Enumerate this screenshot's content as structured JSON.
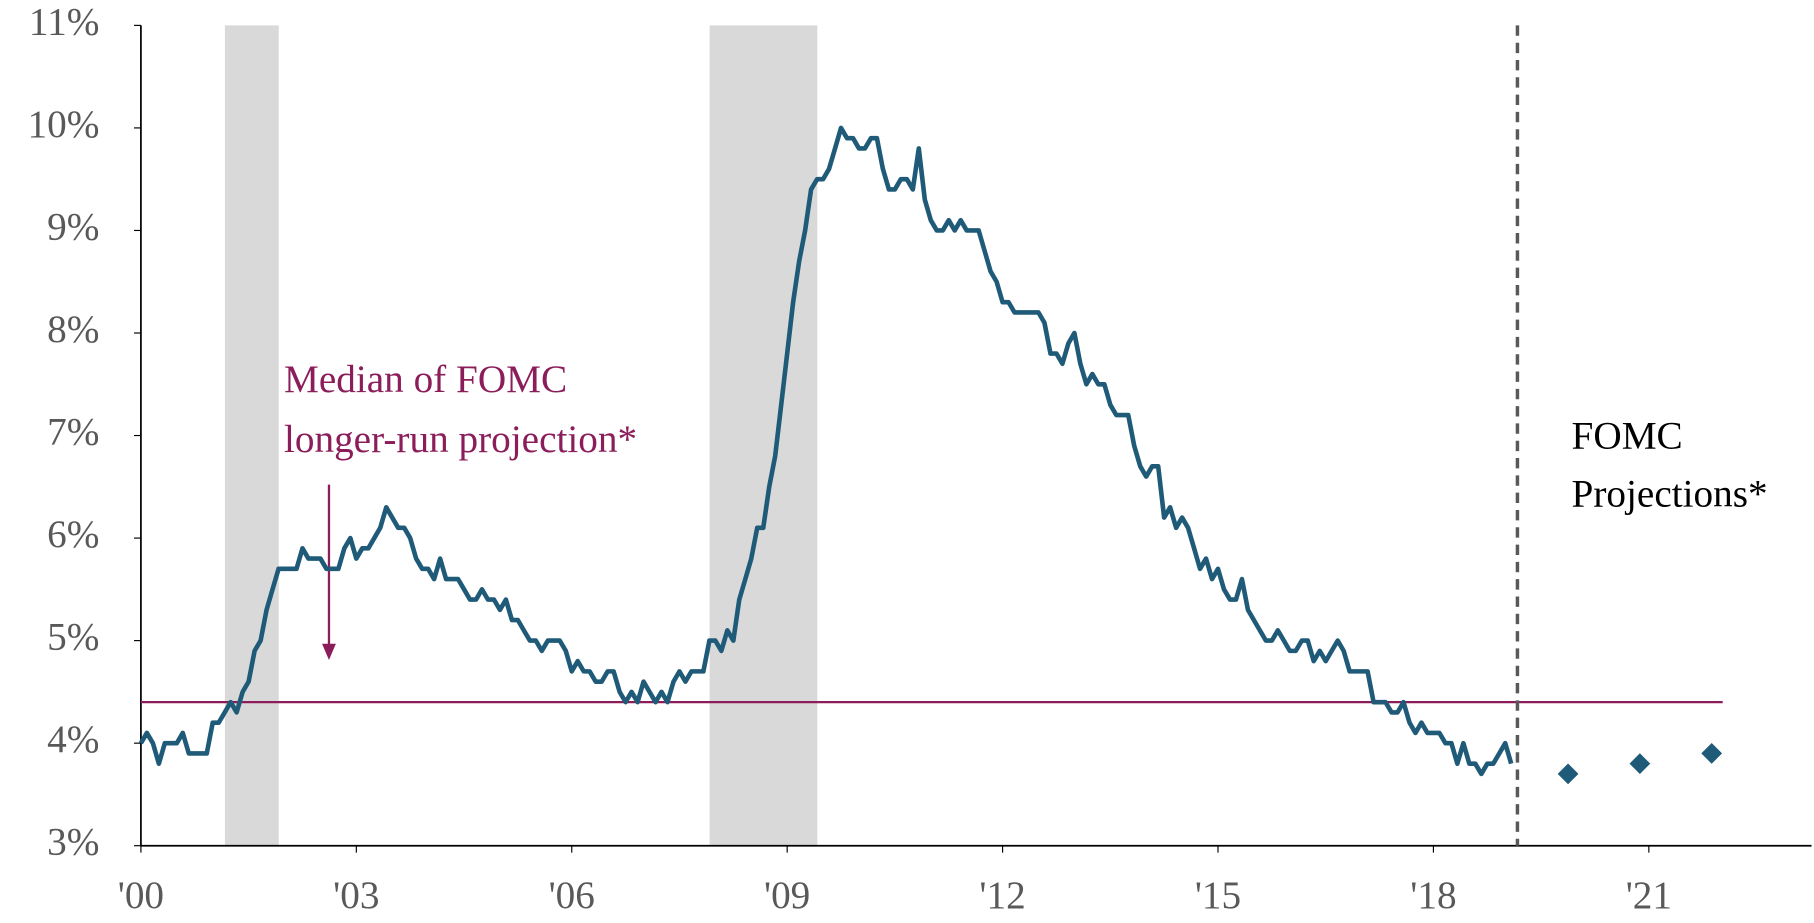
{
  "chart_data": {
    "type": "line",
    "series": [
      {
        "color": "#1f5b78",
        "x": [
          2000,
          2000.083,
          2000.167,
          2000.25,
          2000.333,
          2000.417,
          2000.5,
          2000.583,
          2000.667,
          2000.75,
          2000.833,
          2000.917,
          2001,
          2001.083,
          2001.167,
          2001.25,
          2001.333,
          2001.417,
          2001.5,
          2001.583,
          2001.667,
          2001.75,
          2001.833,
          2001.917,
          2002,
          2002.083,
          2002.167,
          2002.25,
          2002.333,
          2002.417,
          2002.5,
          2002.583,
          2002.667,
          2002.75,
          2002.833,
          2002.917,
          2003,
          2003.083,
          2003.167,
          2003.25,
          2003.333,
          2003.417,
          2003.5,
          2003.583,
          2003.667,
          2003.75,
          2003.833,
          2003.917,
          2004,
          2004.083,
          2004.167,
          2004.25,
          2004.333,
          2004.417,
          2004.5,
          2004.583,
          2004.667,
          2004.75,
          2004.833,
          2004.917,
          2005,
          2005.083,
          2005.167,
          2005.25,
          2005.333,
          2005.417,
          2005.5,
          2005.583,
          2005.667,
          2005.75,
          2005.833,
          2005.917,
          2006,
          2006.083,
          2006.167,
          2006.25,
          2006.333,
          2006.417,
          2006.5,
          2006.583,
          2006.667,
          2006.75,
          2006.833,
          2006.917,
          2007,
          2007.083,
          2007.167,
          2007.25,
          2007.333,
          2007.417,
          2007.5,
          2007.583,
          2007.667,
          2007.75,
          2007.833,
          2007.917,
          2008,
          2008.083,
          2008.167,
          2008.25,
          2008.333,
          2008.417,
          2008.5,
          2008.583,
          2008.667,
          2008.75,
          2008.833,
          2008.917,
          2009,
          2009.083,
          2009.167,
          2009.25,
          2009.333,
          2009.417,
          2009.5,
          2009.583,
          2009.667,
          2009.75,
          2009.833,
          2009.917,
          2010,
          2010.083,
          2010.167,
          2010.25,
          2010.333,
          2010.417,
          2010.5,
          2010.583,
          2010.667,
          2010.75,
          2010.833,
          2010.917,
          2011,
          2011.083,
          2011.167,
          2011.25,
          2011.333,
          2011.417,
          2011.5,
          2011.583,
          2011.667,
          2011.75,
          2011.833,
          2011.917,
          2012,
          2012.083,
          2012.167,
          2012.25,
          2012.333,
          2012.417,
          2012.5,
          2012.583,
          2012.667,
          2012.75,
          2012.833,
          2012.917,
          2013,
          2013.083,
          2013.167,
          2013.25,
          2013.333,
          2013.417,
          2013.5,
          2013.583,
          2013.667,
          2013.75,
          2013.833,
          2013.917,
          2014,
          2014.083,
          2014.167,
          2014.25,
          2014.333,
          2014.417,
          2014.5,
          2014.583,
          2014.667,
          2014.75,
          2014.833,
          2014.917,
          2015,
          2015.083,
          2015.167,
          2015.25,
          2015.333,
          2015.417,
          2015.5,
          2015.583,
          2015.667,
          2015.75,
          2015.833,
          2015.917,
          2016,
          2016.083,
          2016.167,
          2016.25,
          2016.333,
          2016.417,
          2016.5,
          2016.583,
          2016.667,
          2016.75,
          2016.833,
          2016.917,
          2017,
          2017.083,
          2017.167,
          2017.25,
          2017.333,
          2017.417,
          2017.5,
          2017.583,
          2017.667,
          2017.75,
          2017.833,
          2017.917,
          2018,
          2018.083,
          2018.167,
          2018.25,
          2018.333,
          2018.417,
          2018.5,
          2018.583,
          2018.667,
          2018.75,
          2018.833,
          2018.917,
          2019,
          2019.083
        ],
        "values": [
          4.0,
          4.1,
          4.0,
          3.8,
          4.0,
          4.0,
          4.0,
          4.1,
          3.9,
          3.9,
          3.9,
          3.9,
          4.2,
          4.2,
          4.3,
          4.4,
          4.3,
          4.5,
          4.6,
          4.9,
          5.0,
          5.3,
          5.5,
          5.7,
          5.7,
          5.7,
          5.7,
          5.9,
          5.8,
          5.8,
          5.8,
          5.7,
          5.7,
          5.7,
          5.9,
          6.0,
          5.8,
          5.9,
          5.9,
          6.0,
          6.1,
          6.3,
          6.2,
          6.1,
          6.1,
          6.0,
          5.8,
          5.7,
          5.7,
          5.6,
          5.8,
          5.6,
          5.6,
          5.6,
          5.5,
          5.4,
          5.4,
          5.5,
          5.4,
          5.4,
          5.3,
          5.4,
          5.2,
          5.2,
          5.1,
          5.0,
          5.0,
          4.9,
          5.0,
          5.0,
          5.0,
          4.9,
          4.7,
          4.8,
          4.7,
          4.7,
          4.6,
          4.6,
          4.7,
          4.7,
          4.5,
          4.4,
          4.5,
          4.4,
          4.6,
          4.5,
          4.4,
          4.5,
          4.4,
          4.6,
          4.7,
          4.6,
          4.7,
          4.7,
          4.7,
          5.0,
          5.0,
          4.9,
          5.1,
          5.0,
          5.4,
          5.6,
          5.8,
          6.1,
          6.1,
          6.5,
          6.8,
          7.3,
          7.8,
          8.3,
          8.7,
          9.0,
          9.4,
          9.5,
          9.5,
          9.6,
          9.8,
          10.0,
          9.9,
          9.9,
          9.8,
          9.8,
          9.9,
          9.9,
          9.6,
          9.4,
          9.4,
          9.5,
          9.5,
          9.4,
          9.8,
          9.3,
          9.1,
          9.0,
          9.0,
          9.1,
          9.0,
          9.1,
          9.0,
          9.0,
          9.0,
          8.8,
          8.6,
          8.5,
          8.3,
          8.3,
          8.2,
          8.2,
          8.2,
          8.2,
          8.2,
          8.1,
          7.8,
          7.8,
          7.7,
          7.9,
          8.0,
          7.7,
          7.5,
          7.6,
          7.5,
          7.5,
          7.3,
          7.2,
          7.2,
          7.2,
          6.9,
          6.7,
          6.6,
          6.7,
          6.7,
          6.2,
          6.3,
          6.1,
          6.2,
          6.1,
          5.9,
          5.7,
          5.8,
          5.6,
          5.7,
          5.5,
          5.4,
          5.4,
          5.6,
          5.3,
          5.2,
          5.1,
          5.0,
          5.0,
          5.1,
          5.0,
          4.9,
          4.9,
          5.0,
          5.0,
          4.8,
          4.9,
          4.8,
          4.9,
          5.0,
          4.9,
          4.7,
          4.7,
          4.7,
          4.7,
          4.4,
          4.4,
          4.4,
          4.3,
          4.3,
          4.4,
          4.2,
          4.1,
          4.2,
          4.1,
          4.1,
          4.1,
          4.0,
          4.0,
          3.8,
          4.0,
          3.8,
          3.8,
          3.7,
          3.8,
          3.8,
          3.9,
          4.0,
          3.8
        ]
      },
      {
        "color": "#1f5b78",
        "marker": "diamond",
        "x": [
          2019.875,
          2020.875,
          2021.875
        ],
        "values": [
          3.7,
          3.8,
          3.9
        ]
      }
    ],
    "recessions": [
      [
        2001.17,
        2001.92
      ],
      [
        2007.92,
        2009.42
      ]
    ],
    "recession_color": "#d9d9d9",
    "longer_run": {
      "value": 4.4,
      "color": "#8b1e5a",
      "label": [
        "Median of FOMC",
        "longer-run projection*"
      ]
    },
    "projection_start": 2019.17,
    "projection_label": [
      "FOMC",
      "Projections*"
    ],
    "xlim": [
      2000,
      2021.9
    ],
    "xticks": [
      {
        "value": 2000,
        "label": "'00"
      },
      {
        "value": 2003,
        "label": "'03"
      },
      {
        "value": 2006,
        "label": "'06"
      },
      {
        "value": 2009,
        "label": "'09"
      },
      {
        "value": 2012,
        "label": "'12"
      },
      {
        "value": 2015,
        "label": "'15"
      },
      {
        "value": 2018,
        "label": "'18"
      },
      {
        "value": 2021,
        "label": "'21"
      }
    ],
    "ylim": [
      3,
      11
    ],
    "yticks": [
      {
        "value": 3,
        "label": "3%"
      },
      {
        "value": 4,
        "label": "4%"
      },
      {
        "value": 5,
        "label": "5%"
      },
      {
        "value": 6,
        "label": "6%"
      },
      {
        "value": 7,
        "label": "7%"
      },
      {
        "value": 8,
        "label": "8%"
      },
      {
        "value": 9,
        "label": "9%"
      },
      {
        "value": 10,
        "label": "10%"
      },
      {
        "value": 11,
        "label": "11%"
      }
    ]
  }
}
